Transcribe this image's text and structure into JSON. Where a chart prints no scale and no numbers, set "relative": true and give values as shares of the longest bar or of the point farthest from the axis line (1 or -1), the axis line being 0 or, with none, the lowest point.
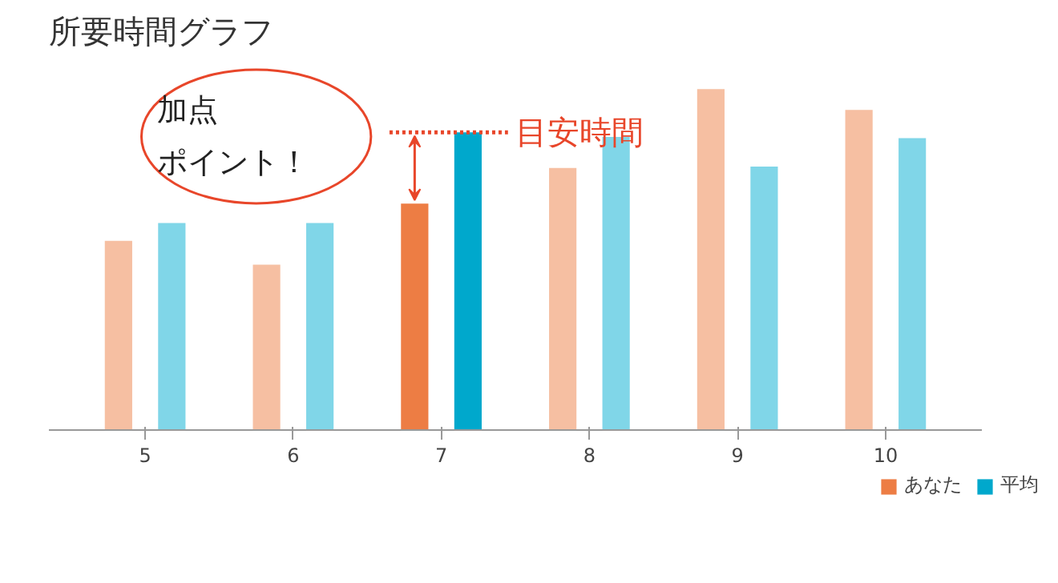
{
  "chart_data": {
    "type": "bar",
    "title": "所要時間グラフ",
    "categories": [
      "5",
      "6",
      "7",
      "8",
      "9",
      "10"
    ],
    "relative": true,
    "legend": "bottom right",
    "series": [
      {
        "name": "あなた",
        "color": "#ed7d44",
        "colors": [
          "#f6bfa2",
          "#f6bfa2",
          "#ed7d44",
          "#f6bfa2",
          "#f6bfa2",
          "#f6bfa2"
        ],
        "values": [
          0.555,
          0.485,
          0.664,
          0.769,
          1,
          0.939
        ]
      },
      {
        "name": "平均",
        "color": "#00a8cc",
        "colors": [
          "#80d6e8",
          "#80d6e8",
          "#00a8cc",
          "#80d6e8",
          "#80d6e8",
          "#80d6e8"
        ],
        "values": [
          0.607,
          0.607,
          0.873,
          0.86,
          0.773,
          0.856
        ]
      }
    ],
    "ref_lines": [
      {
        "axis": "y",
        "value": 0.873,
        "label": "目安時間",
        "color": "#e8462a",
        "line_style": "dotted"
      }
    ],
    "annotations": [
      "加点ポイント！"
    ]
  }
}
